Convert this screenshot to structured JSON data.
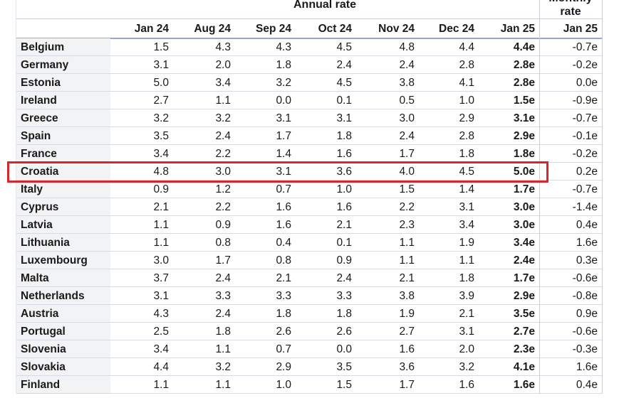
{
  "header": {
    "annual": "Annual rate",
    "monthly": "Monthly rate"
  },
  "columns": [
    "Jan 24",
    "Aug 24",
    "Sep 24",
    "Oct 24",
    "Nov 24",
    "Dec 24",
    "Jan 25"
  ],
  "monthly_column": "Jan 25",
  "rows": [
    {
      "country": "Belgium",
      "values": [
        "1.5",
        "4.3",
        "4.3",
        "4.5",
        "4.8",
        "4.4",
        "4.4e"
      ],
      "monthly": "-0.7e"
    },
    {
      "country": "Germany",
      "values": [
        "3.1",
        "2.0",
        "1.8",
        "2.4",
        "2.4",
        "2.8",
        "2.8e"
      ],
      "monthly": "-0.2e"
    },
    {
      "country": "Estonia",
      "values": [
        "5.0",
        "3.4",
        "3.2",
        "4.5",
        "3.8",
        "4.1",
        "2.8e"
      ],
      "monthly": "0.0e"
    },
    {
      "country": "Ireland",
      "values": [
        "2.7",
        "1.1",
        "0.0",
        "0.1",
        "0.5",
        "1.0",
        "1.5e"
      ],
      "monthly": "-0.9e"
    },
    {
      "country": "Greece",
      "values": [
        "3.2",
        "3.2",
        "3.1",
        "3.1",
        "3.0",
        "2.9",
        "3.1e"
      ],
      "monthly": "-0.7e"
    },
    {
      "country": "Spain",
      "values": [
        "3.5",
        "2.4",
        "1.7",
        "1.8",
        "2.4",
        "2.8",
        "2.9e"
      ],
      "monthly": "-0.1e"
    },
    {
      "country": "France",
      "values": [
        "3.4",
        "2.2",
        "1.4",
        "1.6",
        "1.7",
        "1.8",
        "1.8e"
      ],
      "monthly": "-0.2e"
    },
    {
      "country": "Croatia",
      "values": [
        "4.8",
        "3.0",
        "3.1",
        "3.6",
        "4.0",
        "4.5",
        "5.0e"
      ],
      "monthly": "0.2e"
    },
    {
      "country": "Italy",
      "values": [
        "0.9",
        "1.2",
        "0.7",
        "1.0",
        "1.5",
        "1.4",
        "1.7e"
      ],
      "monthly": "-0.7e"
    },
    {
      "country": "Cyprus",
      "values": [
        "2.1",
        "2.2",
        "1.6",
        "1.6",
        "2.2",
        "3.1",
        "3.0e"
      ],
      "monthly": "-1.4e"
    },
    {
      "country": "Latvia",
      "values": [
        "1.1",
        "0.9",
        "1.6",
        "2.1",
        "2.3",
        "3.4",
        "3.0e"
      ],
      "monthly": "0.4e"
    },
    {
      "country": "Lithuania",
      "values": [
        "1.1",
        "0.8",
        "0.4",
        "0.1",
        "1.1",
        "1.9",
        "3.4e"
      ],
      "monthly": "1.6e"
    },
    {
      "country": "Luxembourg",
      "values": [
        "3.0",
        "1.7",
        "0.8",
        "0.9",
        "1.1",
        "1.1",
        "2.4e"
      ],
      "monthly": "0.3e"
    },
    {
      "country": "Malta",
      "values": [
        "3.7",
        "2.4",
        "2.1",
        "2.4",
        "2.1",
        "1.8",
        "1.7e"
      ],
      "monthly": "-0.6e"
    },
    {
      "country": "Netherlands",
      "values": [
        "3.1",
        "3.3",
        "3.3",
        "3.3",
        "3.8",
        "3.9",
        "2.9e"
      ],
      "monthly": "-0.8e"
    },
    {
      "country": "Austria",
      "values": [
        "4.3",
        "2.4",
        "1.8",
        "1.8",
        "1.9",
        "2.1",
        "3.5e"
      ],
      "monthly": "0.9e"
    },
    {
      "country": "Portugal",
      "values": [
        "2.5",
        "1.8",
        "2.6",
        "2.6",
        "2.7",
        "3.1",
        "2.7e"
      ],
      "monthly": "-0.6e"
    },
    {
      "country": "Slovenia",
      "values": [
        "3.4",
        "1.1",
        "0.7",
        "0.0",
        "1.6",
        "2.0",
        "2.3e"
      ],
      "monthly": "-0.3e"
    },
    {
      "country": "Slovakia",
      "values": [
        "4.4",
        "3.2",
        "2.9",
        "3.5",
        "3.6",
        "3.2",
        "4.1e"
      ],
      "monthly": "1.6e"
    },
    {
      "country": "Finland",
      "values": [
        "1.1",
        "1.1",
        "1.0",
        "1.5",
        "1.7",
        "1.6",
        "1.6e"
      ],
      "monthly": "0.4e"
    }
  ]
}
